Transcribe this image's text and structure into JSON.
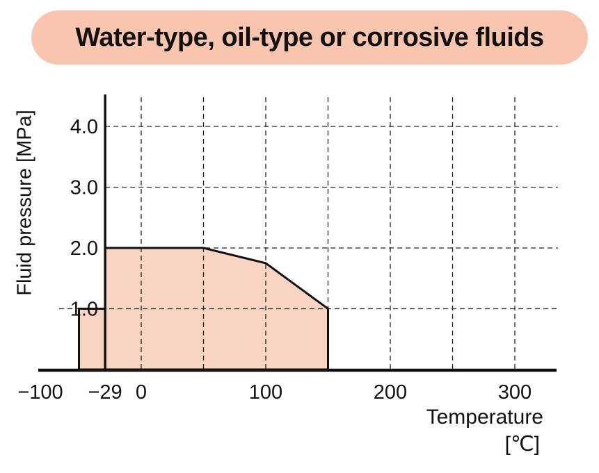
{
  "title": {
    "text": "Water-type, oil-type or corrosive fluids",
    "badge_color": "#f9c5ae"
  },
  "chart_data": {
    "type": "area",
    "title": "Water-type, oil-type or corrosive fluids",
    "xlabel": "Temperature",
    "xlabel_unit": "[℃]",
    "ylabel": "Fluid pressure [MPa]",
    "xlim": [
      -100,
      335
    ],
    "ylim": [
      0,
      4.55
    ],
    "grid": "dashed",
    "axis_line_at_x": -29,
    "x_ticks": [
      {
        "value": -100,
        "label": "−100"
      },
      {
        "value": -29,
        "label": "−29"
      },
      {
        "value": 0,
        "label": "0"
      },
      {
        "value": 100,
        "label": "100"
      },
      {
        "value": 200,
        "label": "200"
      },
      {
        "value": 300,
        "label": "300"
      }
    ],
    "y_ticks": [
      {
        "value": 1,
        "label": "1.0"
      },
      {
        "value": 2,
        "label": "2.0"
      },
      {
        "value": 3,
        "label": "3.0"
      },
      {
        "value": 4,
        "label": "4.0"
      }
    ],
    "x_gridlines": [
      0,
      50,
      100,
      150,
      200,
      250,
      300
    ],
    "y_gridlines": [
      1,
      2,
      3,
      4
    ],
    "series": [
      {
        "name": "allowable-operating-region",
        "points": [
          [
            -50,
            0
          ],
          [
            -50,
            1.0
          ],
          [
            -29,
            1.0
          ],
          [
            -29,
            2.0
          ],
          [
            50,
            2.0
          ],
          [
            100,
            1.75
          ],
          [
            150,
            1.0
          ],
          [
            150,
            0
          ]
        ],
        "fill": "#fad4c2",
        "stroke": "#111111"
      }
    ]
  }
}
